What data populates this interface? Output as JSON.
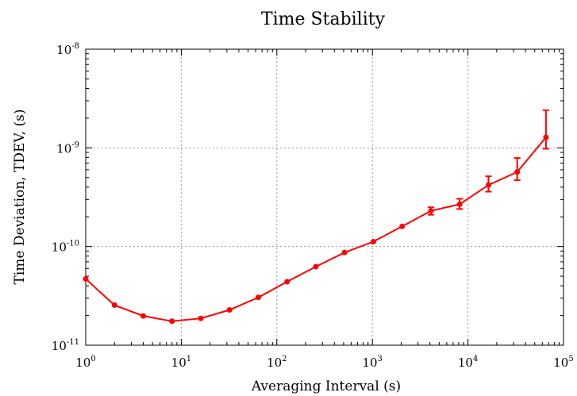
{
  "chart_data": {
    "type": "line",
    "title": "Time Stability",
    "xlabel": "Averaging Interval (s)",
    "ylabel": "Time Deviation, TDEV, (s)",
    "xscale": "log",
    "yscale": "log",
    "xlim": [
      1,
      100000
    ],
    "ylim": [
      1e-11,
      1e-08
    ],
    "grid": true,
    "x_ticks": [
      {
        "base": "10",
        "exp": "0"
      },
      {
        "base": "10",
        "exp": "1"
      },
      {
        "base": "10",
        "exp": "2"
      },
      {
        "base": "10",
        "exp": "3"
      },
      {
        "base": "10",
        "exp": "4"
      },
      {
        "base": "10",
        "exp": "5"
      }
    ],
    "y_ticks": [
      {
        "base": "10",
        "exp": "-11"
      },
      {
        "base": "10",
        "exp": "-10"
      },
      {
        "base": "10",
        "exp": "-9"
      },
      {
        "base": "10",
        "exp": "-8"
      }
    ],
    "series_color": "#ff0000",
    "series": [
      {
        "x": [
          1,
          2,
          4,
          8,
          16,
          32,
          64,
          128,
          256,
          512,
          1024,
          2048,
          4096,
          8192,
          16384,
          32768,
          65536
        ],
        "y": [
          4.7e-11,
          2.55e-11,
          1.98e-11,
          1.75e-11,
          1.87e-11,
          2.28e-11,
          3.05e-11,
          4.4e-11,
          6.25e-11,
          8.7e-11,
          1.12e-10,
          1.6e-10,
          2.3e-10,
          2.68e-10,
          4.2e-10,
          5.7e-10,
          1.28e-09
        ],
        "y_err_low": [
          null,
          null,
          null,
          null,
          null,
          null,
          null,
          null,
          null,
          null,
          null,
          null,
          2.1e-10,
          2.4e-10,
          3.6e-10,
          4.7e-10,
          9.8e-10
        ],
        "y_err_high": [
          null,
          null,
          null,
          null,
          null,
          null,
          null,
          null,
          null,
          null,
          null,
          null,
          2.5e-10,
          3.05e-10,
          5.15e-10,
          7.9e-10,
          2.4e-09
        ]
      }
    ]
  }
}
